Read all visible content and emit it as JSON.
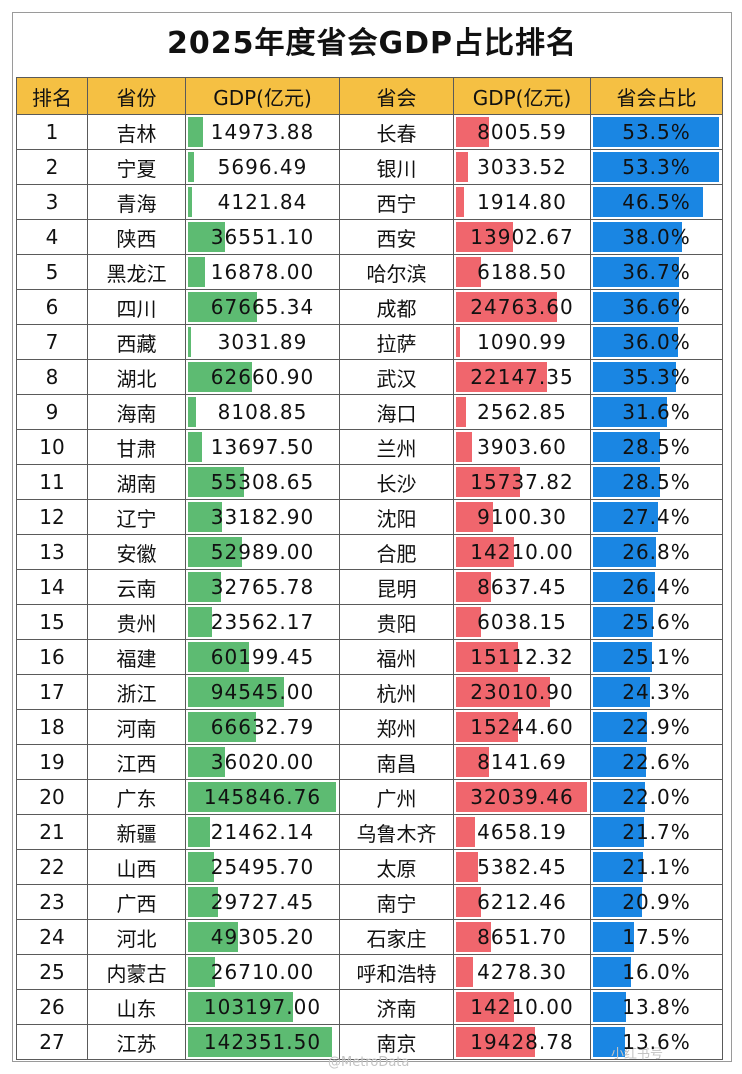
{
  "title": "2025年度省会GDP占比排名",
  "headers": [
    "排名",
    "省份",
    "GDP(亿元)",
    "省会",
    "GDP(亿元)",
    "省会占比"
  ],
  "colors": {
    "header": "#f5c043",
    "province_bar": "#5dbb72",
    "capital_bar": "#f0666d",
    "share_bar": "#1a86e3"
  },
  "watermark": "@MetroData",
  "watermark_secondary": "小红书号",
  "chart_data": {
    "type": "table",
    "title": "2025年度省会GDP占比排名",
    "columns": [
      "排名",
      "省份",
      "GDP(亿元)",
      "省会",
      "GDP(亿元)",
      "省会占比"
    ],
    "rows": [
      {
        "rank": "1",
        "province": "吉林",
        "province_gdp": "14973.88",
        "province_gdp_num": 14973.88,
        "capital": "长春",
        "capital_gdp": "8005.59",
        "capital_gdp_num": 8005.59,
        "share": "53.5%",
        "share_num": 53.5
      },
      {
        "rank": "2",
        "province": "宁夏",
        "province_gdp": "5696.49",
        "province_gdp_num": 5696.49,
        "capital": "银川",
        "capital_gdp": "3033.52",
        "capital_gdp_num": 3033.52,
        "share": "53.3%",
        "share_num": 53.3
      },
      {
        "rank": "3",
        "province": "青海",
        "province_gdp": "4121.84",
        "province_gdp_num": 4121.84,
        "capital": "西宁",
        "capital_gdp": "1914.80",
        "capital_gdp_num": 1914.8,
        "share": "46.5%",
        "share_num": 46.5
      },
      {
        "rank": "4",
        "province": "陕西",
        "province_gdp": "36551.10",
        "province_gdp_num": 36551.1,
        "capital": "西安",
        "capital_gdp": "13902.67",
        "capital_gdp_num": 13902.67,
        "share": "38.0%",
        "share_num": 38.0
      },
      {
        "rank": "5",
        "province": "黑龙江",
        "province_gdp": "16878.00",
        "province_gdp_num": 16878.0,
        "capital": "哈尔滨",
        "capital_gdp": "6188.50",
        "capital_gdp_num": 6188.5,
        "share": "36.7%",
        "share_num": 36.7
      },
      {
        "rank": "6",
        "province": "四川",
        "province_gdp": "67665.34",
        "province_gdp_num": 67665.34,
        "capital": "成都",
        "capital_gdp": "24763.60",
        "capital_gdp_num": 24763.6,
        "share": "36.6%",
        "share_num": 36.6
      },
      {
        "rank": "7",
        "province": "西藏",
        "province_gdp": "3031.89",
        "province_gdp_num": 3031.89,
        "capital": "拉萨",
        "capital_gdp": "1090.99",
        "capital_gdp_num": 1090.99,
        "share": "36.0%",
        "share_num": 36.0
      },
      {
        "rank": "8",
        "province": "湖北",
        "province_gdp": "62660.90",
        "province_gdp_num": 62660.9,
        "capital": "武汉",
        "capital_gdp": "22147.35",
        "capital_gdp_num": 22147.35,
        "share": "35.3%",
        "share_num": 35.3
      },
      {
        "rank": "9",
        "province": "海南",
        "province_gdp": "8108.85",
        "province_gdp_num": 8108.85,
        "capital": "海口",
        "capital_gdp": "2562.85",
        "capital_gdp_num": 2562.85,
        "share": "31.6%",
        "share_num": 31.6
      },
      {
        "rank": "10",
        "province": "甘肃",
        "province_gdp": "13697.50",
        "province_gdp_num": 13697.5,
        "capital": "兰州",
        "capital_gdp": "3903.60",
        "capital_gdp_num": 3903.6,
        "share": "28.5%",
        "share_num": 28.5
      },
      {
        "rank": "11",
        "province": "湖南",
        "province_gdp": "55308.65",
        "province_gdp_num": 55308.65,
        "capital": "长沙",
        "capital_gdp": "15737.82",
        "capital_gdp_num": 15737.82,
        "share": "28.5%",
        "share_num": 28.5
      },
      {
        "rank": "12",
        "province": "辽宁",
        "province_gdp": "33182.90",
        "province_gdp_num": 33182.9,
        "capital": "沈阳",
        "capital_gdp": "9100.30",
        "capital_gdp_num": 9100.3,
        "share": "27.4%",
        "share_num": 27.4
      },
      {
        "rank": "13",
        "province": "安徽",
        "province_gdp": "52989.00",
        "province_gdp_num": 52989.0,
        "capital": "合肥",
        "capital_gdp": "14210.00",
        "capital_gdp_num": 14210.0,
        "share": "26.8%",
        "share_num": 26.8
      },
      {
        "rank": "14",
        "province": "云南",
        "province_gdp": "32765.78",
        "province_gdp_num": 32765.78,
        "capital": "昆明",
        "capital_gdp": "8637.45",
        "capital_gdp_num": 8637.45,
        "share": "26.4%",
        "share_num": 26.4
      },
      {
        "rank": "15",
        "province": "贵州",
        "province_gdp": "23562.17",
        "province_gdp_num": 23562.17,
        "capital": "贵阳",
        "capital_gdp": "6038.15",
        "capital_gdp_num": 6038.15,
        "share": "25.6%",
        "share_num": 25.6
      },
      {
        "rank": "16",
        "province": "福建",
        "province_gdp": "60199.45",
        "province_gdp_num": 60199.45,
        "capital": "福州",
        "capital_gdp": "15112.32",
        "capital_gdp_num": 15112.32,
        "share": "25.1%",
        "share_num": 25.1
      },
      {
        "rank": "17",
        "province": "浙江",
        "province_gdp": "94545.00",
        "province_gdp_num": 94545.0,
        "capital": "杭州",
        "capital_gdp": "23010.90",
        "capital_gdp_num": 23010.9,
        "share": "24.3%",
        "share_num": 24.3
      },
      {
        "rank": "18",
        "province": "河南",
        "province_gdp": "66632.79",
        "province_gdp_num": 66632.79,
        "capital": "郑州",
        "capital_gdp": "15244.60",
        "capital_gdp_num": 15244.6,
        "share": "22.9%",
        "share_num": 22.9
      },
      {
        "rank": "19",
        "province": "江西",
        "province_gdp": "36020.00",
        "province_gdp_num": 36020.0,
        "capital": "南昌",
        "capital_gdp": "8141.69",
        "capital_gdp_num": 8141.69,
        "share": "22.6%",
        "share_num": 22.6
      },
      {
        "rank": "20",
        "province": "广东",
        "province_gdp": "145846.76",
        "province_gdp_num": 145846.76,
        "capital": "广州",
        "capital_gdp": "32039.46",
        "capital_gdp_num": 32039.46,
        "share": "22.0%",
        "share_num": 22.0
      },
      {
        "rank": "21",
        "province": "新疆",
        "province_gdp": "21462.14",
        "province_gdp_num": 21462.14,
        "capital": "乌鲁木齐",
        "capital_gdp": "4658.19",
        "capital_gdp_num": 4658.19,
        "share": "21.7%",
        "share_num": 21.7
      },
      {
        "rank": "22",
        "province": "山西",
        "province_gdp": "25495.70",
        "province_gdp_num": 25495.7,
        "capital": "太原",
        "capital_gdp": "5382.45",
        "capital_gdp_num": 5382.45,
        "share": "21.1%",
        "share_num": 21.1
      },
      {
        "rank": "23",
        "province": "广西",
        "province_gdp": "29727.45",
        "province_gdp_num": 29727.45,
        "capital": "南宁",
        "capital_gdp": "6212.46",
        "capital_gdp_num": 6212.46,
        "share": "20.9%",
        "share_num": 20.9
      },
      {
        "rank": "24",
        "province": "河北",
        "province_gdp": "49305.20",
        "province_gdp_num": 49305.2,
        "capital": "石家庄",
        "capital_gdp": "8651.70",
        "capital_gdp_num": 8651.7,
        "share": "17.5%",
        "share_num": 17.5
      },
      {
        "rank": "25",
        "province": "内蒙古",
        "province_gdp": "26710.00",
        "province_gdp_num": 26710.0,
        "capital": "呼和浩特",
        "capital_gdp": "4278.30",
        "capital_gdp_num": 4278.3,
        "share": "16.0%",
        "share_num": 16.0
      },
      {
        "rank": "26",
        "province": "山东",
        "province_gdp": "103197.00",
        "province_gdp_num": 103197.0,
        "capital": "济南",
        "capital_gdp": "14210.00",
        "capital_gdp_num": 14210.0,
        "share": "13.8%",
        "share_num": 13.8
      },
      {
        "rank": "27",
        "province": "江苏",
        "province_gdp": "142351.50",
        "province_gdp_num": 142351.5,
        "capital": "南京",
        "capital_gdp": "19428.78",
        "capital_gdp_num": 19428.78,
        "share": "13.6%",
        "share_num": 13.6
      }
    ]
  }
}
